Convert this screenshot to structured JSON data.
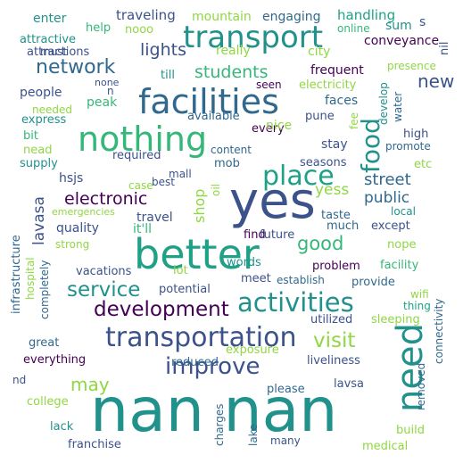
{
  "background": "#ffffff",
  "colors": {
    "c_deep": "#440154",
    "c_indigo": "#3b528b",
    "c_blue": "#31688e",
    "c_teal": "#21918c",
    "c_green": "#35b779",
    "c_jade": "#1fa187",
    "c_lime": "#90d743",
    "c_yellow": "#c8e020"
  },
  "words": [
    "nan nan",
    "yes",
    "better",
    "nothing",
    "facilities",
    "transport",
    "need",
    "transportation",
    "activities",
    "place",
    "food",
    "improve",
    "development",
    "service",
    "visit",
    "good",
    "network",
    "street",
    "public",
    "electronic",
    "students",
    "lights",
    "shop",
    "yess",
    "lavasa",
    "new",
    "may",
    "handling",
    "conveyance",
    "traveling",
    "mountain",
    "engaging",
    "sum",
    "s",
    "enter",
    "help",
    "nooo",
    "online",
    "attractive",
    "city",
    "presence",
    "nil",
    "must",
    "attractions",
    "really",
    "frequent",
    "develop",
    "none",
    "seen",
    "electricity",
    "till",
    "n",
    "people",
    "peak",
    "faces",
    "water",
    "needed",
    "pune",
    "fee",
    "express",
    "available",
    "every",
    "high",
    "bit",
    "nice",
    "stay",
    "promote",
    "nead",
    "content",
    "supply",
    "required",
    "mob",
    "seasons",
    "etc",
    "mall",
    "best",
    "case",
    "hsjs",
    "oil",
    "taste",
    "local",
    "emergencies",
    "travel",
    "quality",
    "it'll",
    "find",
    "much",
    "except",
    "strong",
    "future",
    "nope",
    "infrastructure",
    "lot",
    "words",
    "problem",
    "facility",
    "hospital",
    "vacations",
    "meet",
    "establish",
    "provide",
    "completely",
    "potential",
    "wifi",
    "thing",
    "utilized",
    "sleeping",
    "connectivity",
    "great",
    "exposure",
    "liveliness",
    "everything",
    "reduced",
    "nd",
    "please",
    "lavsa",
    "removed",
    "college",
    "charges",
    "lake",
    "lack",
    "build",
    "franchise",
    "many",
    "medical"
  ]
}
